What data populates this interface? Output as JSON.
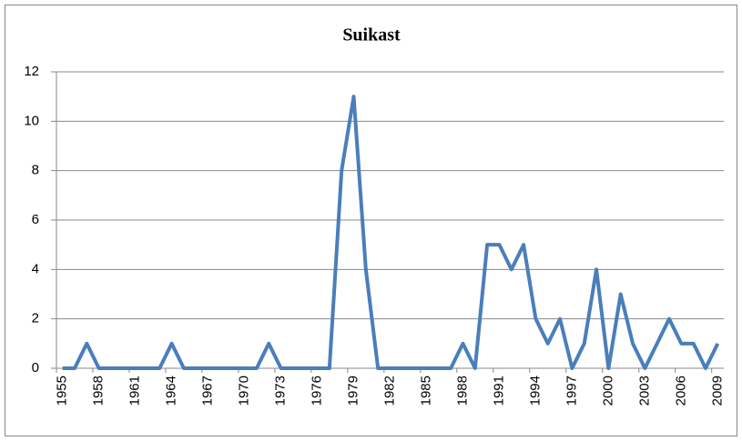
{
  "chart_data": {
    "type": "line",
    "title": "Suikast",
    "categories": [
      "1955",
      null,
      null,
      "1958",
      null,
      null,
      "1961",
      null,
      null,
      "1964",
      null,
      null,
      "1967",
      null,
      null,
      "1970",
      null,
      null,
      "1973",
      null,
      null,
      "1976",
      null,
      null,
      "1979",
      null,
      null,
      "1982",
      null,
      null,
      "1985",
      null,
      null,
      "1988",
      null,
      null,
      "1991",
      null,
      null,
      "1994",
      null,
      null,
      "1997",
      null,
      null,
      "2000",
      null,
      null,
      "2003",
      null,
      null,
      "2006",
      null,
      null,
      "2009"
    ],
    "series": [
      {
        "name": "Suikast",
        "color": "#4a7ebb",
        "values": [
          0,
          0,
          1,
          0,
          0,
          0,
          0,
          0,
          0,
          1,
          0,
          0,
          0,
          0,
          0,
          0,
          0,
          1,
          0,
          0,
          0,
          0,
          0,
          8,
          11,
          4,
          0,
          0,
          0,
          0,
          0,
          0,
          0,
          1,
          0,
          5,
          5,
          4,
          5,
          2,
          1,
          2,
          0,
          1,
          4,
          0,
          3,
          1,
          0,
          1,
          2,
          1,
          1,
          0,
          1
        ]
      }
    ],
    "ylim": [
      0,
      12
    ],
    "yticks": [
      0,
      2,
      4,
      6,
      8,
      10,
      12
    ],
    "grid": true
  }
}
